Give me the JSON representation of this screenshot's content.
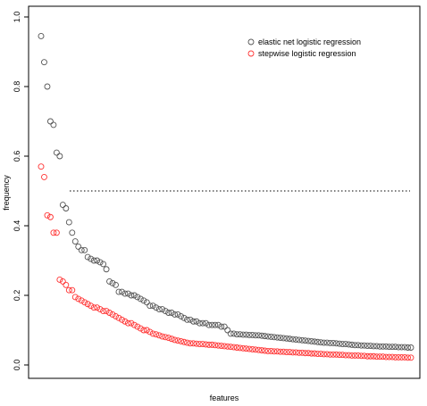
{
  "chart_data": {
    "type": "scatter",
    "title": "",
    "xlabel": "features",
    "ylabel": "frequency",
    "ylim": [
      0.0,
      1.0
    ],
    "yticks": [
      "0.0",
      "0.2",
      "0.4",
      "0.6",
      "0.8",
      "1.0"
    ],
    "grid": false,
    "legend_position": "top-right",
    "reference_line": {
      "y": 0.5,
      "style": "dotted",
      "color": "#000000"
    },
    "x": [
      1,
      2,
      3,
      4,
      5,
      6,
      7,
      8,
      9,
      10,
      11,
      12,
      13,
      14,
      15,
      16,
      17,
      18,
      19,
      20,
      21,
      22,
      23,
      24,
      25,
      26,
      27,
      28,
      29,
      30,
      31,
      32,
      33,
      34,
      35,
      36,
      37,
      38,
      39,
      40,
      41,
      42,
      43,
      44,
      45,
      46,
      47,
      48,
      49,
      50,
      51,
      52,
      53,
      54,
      55,
      56,
      57,
      58,
      59,
      60,
      61,
      62,
      63,
      64,
      65,
      66,
      67,
      68,
      69,
      70,
      71,
      72,
      73,
      74,
      75,
      76,
      77,
      78,
      79,
      80,
      81,
      82,
      83,
      84,
      85,
      86,
      87,
      88,
      89,
      90,
      91,
      92,
      93,
      94,
      95,
      96,
      97,
      98,
      99,
      100,
      101,
      102,
      103,
      104,
      105,
      106,
      107,
      108,
      109,
      110,
      111,
      112,
      113,
      114,
      115,
      116,
      117,
      118,
      119,
      120
    ],
    "series": [
      {
        "name": "elastic net logistic regression",
        "color": "#555555",
        "values": [
          0.945,
          0.87,
          0.8,
          0.7,
          0.69,
          0.61,
          0.6,
          0.46,
          0.45,
          0.41,
          0.38,
          0.355,
          0.34,
          0.33,
          0.33,
          0.31,
          0.305,
          0.3,
          0.3,
          0.295,
          0.29,
          0.275,
          0.24,
          0.235,
          0.23,
          0.21,
          0.21,
          0.205,
          0.205,
          0.2,
          0.2,
          0.195,
          0.19,
          0.185,
          0.18,
          0.17,
          0.17,
          0.165,
          0.16,
          0.16,
          0.155,
          0.15,
          0.15,
          0.145,
          0.145,
          0.14,
          0.135,
          0.13,
          0.13,
          0.125,
          0.125,
          0.12,
          0.12,
          0.12,
          0.115,
          0.115,
          0.115,
          0.115,
          0.11,
          0.11,
          0.1,
          0.09,
          0.09,
          0.088,
          0.088,
          0.087,
          0.087,
          0.086,
          0.086,
          0.085,
          0.085,
          0.084,
          0.083,
          0.082,
          0.081,
          0.08,
          0.079,
          0.078,
          0.077,
          0.076,
          0.075,
          0.074,
          0.073,
          0.072,
          0.071,
          0.07,
          0.069,
          0.068,
          0.067,
          0.066,
          0.065,
          0.064,
          0.064,
          0.063,
          0.063,
          0.062,
          0.061,
          0.06,
          0.06,
          0.059,
          0.058,
          0.057,
          0.057,
          0.056,
          0.056,
          0.055,
          0.055,
          0.054,
          0.054,
          0.053,
          0.053,
          0.053,
          0.052,
          0.052,
          0.052,
          0.051,
          0.051,
          0.051,
          0.05,
          0.05
        ]
      },
      {
        "name": "stepwise logistic regression",
        "color": "#ff3333",
        "values": [
          0.57,
          0.54,
          0.43,
          0.425,
          0.38,
          0.38,
          0.245,
          0.24,
          0.23,
          0.215,
          0.215,
          0.195,
          0.19,
          0.185,
          0.18,
          0.175,
          0.17,
          0.165,
          0.165,
          0.16,
          0.155,
          0.155,
          0.15,
          0.145,
          0.14,
          0.135,
          0.13,
          0.125,
          0.12,
          0.12,
          0.115,
          0.11,
          0.105,
          0.1,
          0.1,
          0.095,
          0.09,
          0.088,
          0.085,
          0.082,
          0.08,
          0.078,
          0.075,
          0.072,
          0.07,
          0.068,
          0.066,
          0.064,
          0.062,
          0.062,
          0.061,
          0.06,
          0.06,
          0.059,
          0.058,
          0.058,
          0.057,
          0.056,
          0.055,
          0.054,
          0.053,
          0.052,
          0.051,
          0.05,
          0.049,
          0.048,
          0.047,
          0.046,
          0.045,
          0.044,
          0.043,
          0.042,
          0.041,
          0.04,
          0.04,
          0.039,
          0.039,
          0.038,
          0.038,
          0.037,
          0.037,
          0.036,
          0.036,
          0.035,
          0.035,
          0.034,
          0.034,
          0.033,
          0.033,
          0.032,
          0.032,
          0.031,
          0.031,
          0.03,
          0.03,
          0.03,
          0.029,
          0.029,
          0.028,
          0.028,
          0.027,
          0.027,
          0.027,
          0.026,
          0.026,
          0.025,
          0.025,
          0.025,
          0.024,
          0.024,
          0.024,
          0.023,
          0.023,
          0.023,
          0.022,
          0.022,
          0.022,
          0.022,
          0.021,
          0.021
        ]
      }
    ]
  }
}
